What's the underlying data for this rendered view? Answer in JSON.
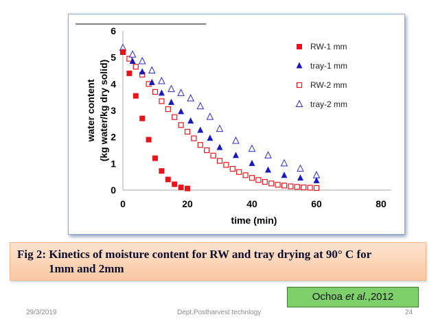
{
  "chart_data": {
    "type": "scatter",
    "title": "",
    "xlabel": "time (min)",
    "ylabel_line1": "water content",
    "ylabel_line2": "(kg water/kg dry solid)",
    "xlim": [
      0,
      80
    ],
    "ylim": [
      0,
      6
    ],
    "xticks": [
      0,
      20,
      40,
      60,
      80
    ],
    "yticks": [
      0,
      1,
      2,
      3,
      4,
      5,
      6
    ],
    "legend_position": "top-right",
    "grid": false,
    "series": [
      {
        "name": "RW-1 mm",
        "marker": "square-filled",
        "color": "#e8131b",
        "x": [
          0,
          2,
          4,
          6,
          8,
          10,
          12,
          14,
          16,
          18,
          20
        ],
        "y": [
          5.2,
          4.4,
          3.55,
          2.7,
          1.9,
          1.2,
          0.72,
          0.4,
          0.22,
          0.1,
          0.06
        ]
      },
      {
        "name": "tray-1 mm",
        "marker": "triangle-filled",
        "color": "#1a1ab8",
        "x": [
          0,
          3,
          6,
          9,
          12,
          15,
          18,
          21,
          24,
          27,
          30,
          35,
          40,
          45,
          50,
          55,
          60
        ],
        "y": [
          5.2,
          4.85,
          4.45,
          4.05,
          3.65,
          3.3,
          2.95,
          2.6,
          2.25,
          1.95,
          1.6,
          1.3,
          1.0,
          0.75,
          0.55,
          0.45,
          0.35
        ]
      },
      {
        "name": "RW-2 mm",
        "marker": "square-open",
        "color": "#e8131b",
        "x": [
          0,
          2,
          4,
          6,
          8,
          10,
          12,
          14,
          16,
          18,
          20,
          22,
          24,
          26,
          28,
          30,
          32,
          34,
          36,
          38,
          40,
          42,
          44,
          46,
          48,
          50,
          52,
          54,
          56,
          58,
          60
        ],
        "y": [
          5.2,
          4.95,
          4.65,
          4.35,
          4.0,
          3.7,
          3.35,
          3.05,
          2.75,
          2.45,
          2.2,
          1.95,
          1.7,
          1.5,
          1.3,
          1.1,
          0.95,
          0.8,
          0.68,
          0.56,
          0.46,
          0.38,
          0.31,
          0.25,
          0.2,
          0.17,
          0.14,
          0.12,
          0.1,
          0.09,
          0.08
        ]
      },
      {
        "name": "tray-2 mm",
        "marker": "triangle-open",
        "color": "#2a2ac0",
        "x": [
          0,
          3,
          6,
          9,
          12,
          15,
          18,
          21,
          24,
          27,
          30,
          35,
          40,
          45,
          50,
          55,
          60
        ],
        "y": [
          5.35,
          5.1,
          4.85,
          4.5,
          4.1,
          3.8,
          3.65,
          3.45,
          3.15,
          2.75,
          2.3,
          1.85,
          1.55,
          1.3,
          1.0,
          0.8,
          0.55
        ]
      }
    ]
  },
  "caption": {
    "line1": "Fig 2: Kinetics of moisture content for RW and tray drying at 90° C for",
    "line2": "1mm and 2mm"
  },
  "citation": {
    "author": "Ochoa ",
    "etal": "et al.",
    "year": ",2012"
  },
  "footer": {
    "date": "29/3/2019",
    "department": "Dept.Postharvest technlogy",
    "page": "24"
  }
}
